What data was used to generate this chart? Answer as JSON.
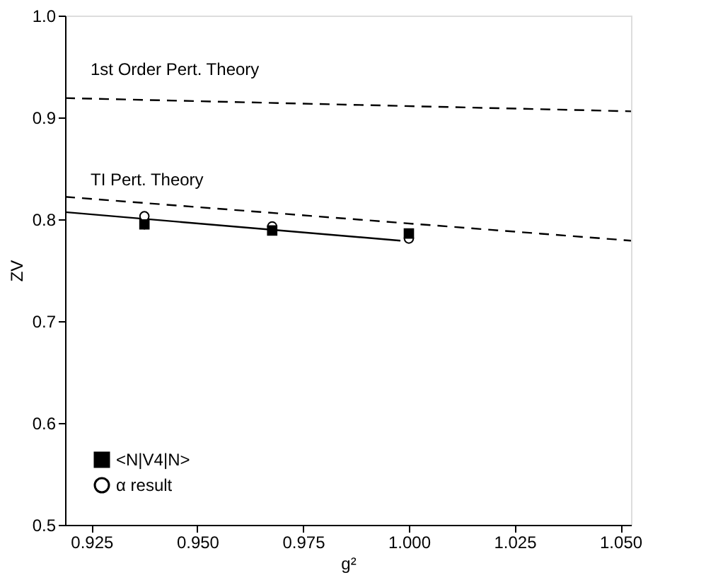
{
  "chart_data": {
    "type": "scatter",
    "xlabel": "g²",
    "ylabel": "ZV",
    "xlim": [
      0.91875,
      1.0525
    ],
    "ylim": [
      0.5,
      1.0
    ],
    "xticks": [
      0.925,
      {
        "value": 0.95,
        "label": "0.950"
      },
      0.975,
      {
        "value": 1.0,
        "label": "1.000"
      },
      1.025,
      {
        "value": 1.05,
        "label": "1.050"
      }
    ],
    "yticks": [
      {
        "value": 0.5,
        "label": "0.5"
      },
      {
        "value": 0.6,
        "label": "0.6"
      },
      {
        "value": 0.7,
        "label": "0.7"
      },
      {
        "value": 0.8,
        "label": "0.8"
      },
      {
        "value": 0.9,
        "label": "0.9"
      },
      {
        "value": 1.0,
        "label": "1.0"
      }
    ],
    "grid": false,
    "legend": "bottom left",
    "series": [
      {
        "name": "<N|V4|N>",
        "marker": "square",
        "color": "#000000",
        "x": [
          0.9375,
          0.9677,
          1.0
        ],
        "values": [
          0.795,
          0.789,
          0.786
        ],
        "errors": [
          0.005,
          null,
          null
        ]
      },
      {
        "name": "α result",
        "marker": "circle",
        "color": "#ffffff",
        "x": [
          0.9375,
          0.9677,
          1.0
        ],
        "values": [
          0.803,
          0.793,
          0.781
        ]
      },
      {
        "type": "line",
        "line_style": "solid",
        "color": "#000000",
        "x": [
          0.91875,
          0.998
        ],
        "values": [
          0.807,
          0.779
        ]
      },
      {
        "type": "line",
        "line_style": "dashed",
        "color": "#000000",
        "x": [
          0.91875,
          1.0525
        ],
        "values": [
          0.822,
          0.779
        ]
      },
      {
        "type": "line",
        "line_style": "dashed",
        "color": "#000000",
        "x": [
          0.91875,
          1.0525
        ],
        "values": [
          0.919,
          0.906
        ]
      }
    ],
    "annotations": [
      "1st Order Pert. Theory",
      "TI Pert. Theory"
    ]
  }
}
